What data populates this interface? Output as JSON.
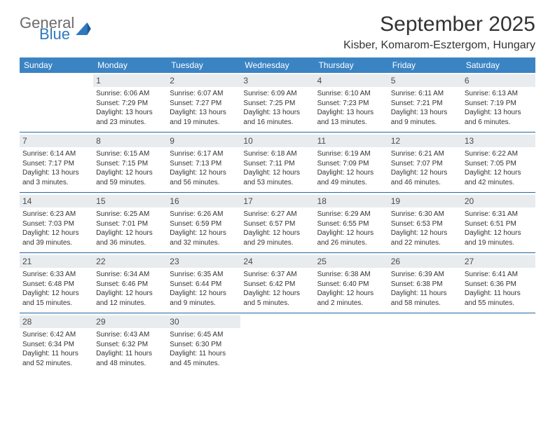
{
  "logo": {
    "text1": "General",
    "text2": "Blue",
    "color_general": "#6b6b6b",
    "color_blue": "#2f78bf"
  },
  "header": {
    "month_title": "September 2025",
    "location": "Kisber, Komarom-Esztergom, Hungary"
  },
  "colors": {
    "header_bg": "#3b84c4",
    "header_fg": "#ffffff",
    "daynum_bg": "#e8ecef",
    "sep": "#2f6faa",
    "text": "#333333"
  },
  "weekdays": [
    "Sunday",
    "Monday",
    "Tuesday",
    "Wednesday",
    "Thursday",
    "Friday",
    "Saturday"
  ],
  "weeks": [
    [
      null,
      {
        "n": "1",
        "sr": "Sunrise: 6:06 AM",
        "ss": "Sunset: 7:29 PM",
        "d1": "Daylight: 13 hours",
        "d2": "and 23 minutes."
      },
      {
        "n": "2",
        "sr": "Sunrise: 6:07 AM",
        "ss": "Sunset: 7:27 PM",
        "d1": "Daylight: 13 hours",
        "d2": "and 19 minutes."
      },
      {
        "n": "3",
        "sr": "Sunrise: 6:09 AM",
        "ss": "Sunset: 7:25 PM",
        "d1": "Daylight: 13 hours",
        "d2": "and 16 minutes."
      },
      {
        "n": "4",
        "sr": "Sunrise: 6:10 AM",
        "ss": "Sunset: 7:23 PM",
        "d1": "Daylight: 13 hours",
        "d2": "and 13 minutes."
      },
      {
        "n": "5",
        "sr": "Sunrise: 6:11 AM",
        "ss": "Sunset: 7:21 PM",
        "d1": "Daylight: 13 hours",
        "d2": "and 9 minutes."
      },
      {
        "n": "6",
        "sr": "Sunrise: 6:13 AM",
        "ss": "Sunset: 7:19 PM",
        "d1": "Daylight: 13 hours",
        "d2": "and 6 minutes."
      }
    ],
    [
      {
        "n": "7",
        "sr": "Sunrise: 6:14 AM",
        "ss": "Sunset: 7:17 PM",
        "d1": "Daylight: 13 hours",
        "d2": "and 3 minutes."
      },
      {
        "n": "8",
        "sr": "Sunrise: 6:15 AM",
        "ss": "Sunset: 7:15 PM",
        "d1": "Daylight: 12 hours",
        "d2": "and 59 minutes."
      },
      {
        "n": "9",
        "sr": "Sunrise: 6:17 AM",
        "ss": "Sunset: 7:13 PM",
        "d1": "Daylight: 12 hours",
        "d2": "and 56 minutes."
      },
      {
        "n": "10",
        "sr": "Sunrise: 6:18 AM",
        "ss": "Sunset: 7:11 PM",
        "d1": "Daylight: 12 hours",
        "d2": "and 53 minutes."
      },
      {
        "n": "11",
        "sr": "Sunrise: 6:19 AM",
        "ss": "Sunset: 7:09 PM",
        "d1": "Daylight: 12 hours",
        "d2": "and 49 minutes."
      },
      {
        "n": "12",
        "sr": "Sunrise: 6:21 AM",
        "ss": "Sunset: 7:07 PM",
        "d1": "Daylight: 12 hours",
        "d2": "and 46 minutes."
      },
      {
        "n": "13",
        "sr": "Sunrise: 6:22 AM",
        "ss": "Sunset: 7:05 PM",
        "d1": "Daylight: 12 hours",
        "d2": "and 42 minutes."
      }
    ],
    [
      {
        "n": "14",
        "sr": "Sunrise: 6:23 AM",
        "ss": "Sunset: 7:03 PM",
        "d1": "Daylight: 12 hours",
        "d2": "and 39 minutes."
      },
      {
        "n": "15",
        "sr": "Sunrise: 6:25 AM",
        "ss": "Sunset: 7:01 PM",
        "d1": "Daylight: 12 hours",
        "d2": "and 36 minutes."
      },
      {
        "n": "16",
        "sr": "Sunrise: 6:26 AM",
        "ss": "Sunset: 6:59 PM",
        "d1": "Daylight: 12 hours",
        "d2": "and 32 minutes."
      },
      {
        "n": "17",
        "sr": "Sunrise: 6:27 AM",
        "ss": "Sunset: 6:57 PM",
        "d1": "Daylight: 12 hours",
        "d2": "and 29 minutes."
      },
      {
        "n": "18",
        "sr": "Sunrise: 6:29 AM",
        "ss": "Sunset: 6:55 PM",
        "d1": "Daylight: 12 hours",
        "d2": "and 26 minutes."
      },
      {
        "n": "19",
        "sr": "Sunrise: 6:30 AM",
        "ss": "Sunset: 6:53 PM",
        "d1": "Daylight: 12 hours",
        "d2": "and 22 minutes."
      },
      {
        "n": "20",
        "sr": "Sunrise: 6:31 AM",
        "ss": "Sunset: 6:51 PM",
        "d1": "Daylight: 12 hours",
        "d2": "and 19 minutes."
      }
    ],
    [
      {
        "n": "21",
        "sr": "Sunrise: 6:33 AM",
        "ss": "Sunset: 6:48 PM",
        "d1": "Daylight: 12 hours",
        "d2": "and 15 minutes."
      },
      {
        "n": "22",
        "sr": "Sunrise: 6:34 AM",
        "ss": "Sunset: 6:46 PM",
        "d1": "Daylight: 12 hours",
        "d2": "and 12 minutes."
      },
      {
        "n": "23",
        "sr": "Sunrise: 6:35 AM",
        "ss": "Sunset: 6:44 PM",
        "d1": "Daylight: 12 hours",
        "d2": "and 9 minutes."
      },
      {
        "n": "24",
        "sr": "Sunrise: 6:37 AM",
        "ss": "Sunset: 6:42 PM",
        "d1": "Daylight: 12 hours",
        "d2": "and 5 minutes."
      },
      {
        "n": "25",
        "sr": "Sunrise: 6:38 AM",
        "ss": "Sunset: 6:40 PM",
        "d1": "Daylight: 12 hours",
        "d2": "and 2 minutes."
      },
      {
        "n": "26",
        "sr": "Sunrise: 6:39 AM",
        "ss": "Sunset: 6:38 PM",
        "d1": "Daylight: 11 hours",
        "d2": "and 58 minutes."
      },
      {
        "n": "27",
        "sr": "Sunrise: 6:41 AM",
        "ss": "Sunset: 6:36 PM",
        "d1": "Daylight: 11 hours",
        "d2": "and 55 minutes."
      }
    ],
    [
      {
        "n": "28",
        "sr": "Sunrise: 6:42 AM",
        "ss": "Sunset: 6:34 PM",
        "d1": "Daylight: 11 hours",
        "d2": "and 52 minutes."
      },
      {
        "n": "29",
        "sr": "Sunrise: 6:43 AM",
        "ss": "Sunset: 6:32 PM",
        "d1": "Daylight: 11 hours",
        "d2": "and 48 minutes."
      },
      {
        "n": "30",
        "sr": "Sunrise: 6:45 AM",
        "ss": "Sunset: 6:30 PM",
        "d1": "Daylight: 11 hours",
        "d2": "and 45 minutes."
      },
      null,
      null,
      null,
      null
    ]
  ]
}
